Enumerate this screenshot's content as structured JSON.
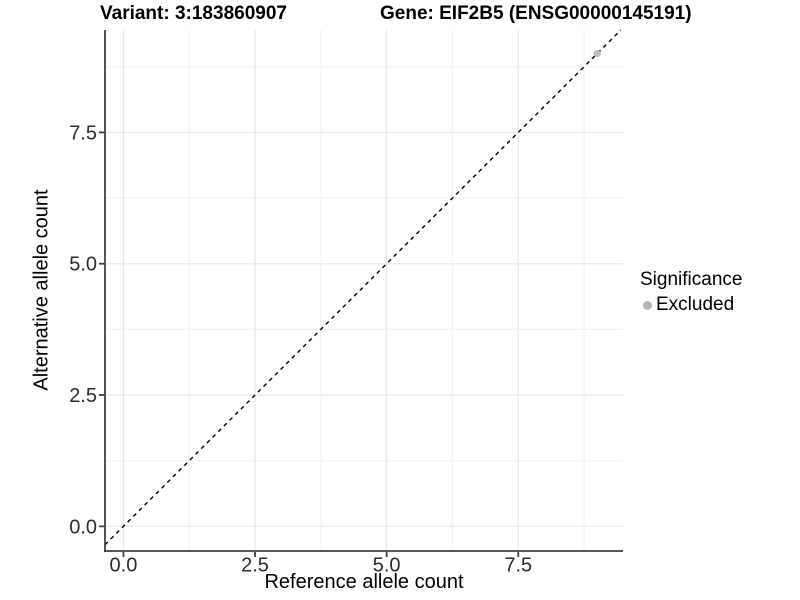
{
  "titles": {
    "left": "Variant: 3:183860907",
    "right": "Gene: EIF2B5 (ENSG00000145191)"
  },
  "colors": {
    "background": "#ffffff",
    "axis_line": "#404040",
    "tick_mark": "#404040",
    "tick_label": "#2b2b2b",
    "grid_major": "#e8e8e8",
    "grid_minor": "#f2f2f2",
    "reference_line": "#000000",
    "point": "#bcbcbc"
  },
  "chart_data": {
    "type": "scatter",
    "title_left": "Variant: 3:183860907",
    "title_right": "Gene: EIF2B5 (ENSG00000145191)",
    "xlabel": "Reference allele count",
    "ylabel": "Alternative allele count",
    "xlim": [
      -0.35,
      9.49
    ],
    "ylim": [
      -0.47,
      9.45
    ],
    "x_ticks": {
      "values": [
        0,
        2.5,
        5,
        7.5
      ],
      "labels": [
        "0.0",
        "2.5",
        "5.0",
        "7.5"
      ]
    },
    "y_ticks": {
      "values": [
        0,
        2.5,
        5,
        7.5
      ],
      "labels": [
        "0.0",
        "2.5",
        "5.0",
        "7.5"
      ]
    },
    "x_minor": [
      1.25,
      3.75,
      6.25,
      8.75
    ],
    "y_minor": [
      1.25,
      3.75,
      6.25,
      8.75
    ],
    "grid": true,
    "reference_line": {
      "type": "abline",
      "slope": 1,
      "intercept": 0,
      "style": "dashed",
      "color": "#000000"
    },
    "series": [
      {
        "name": "Excluded",
        "color": "#bcbcbc",
        "points": [
          [
            9,
            9
          ]
        ]
      }
    ],
    "legend": {
      "title": "Significance",
      "position": "right",
      "items": [
        {
          "label": "Excluded",
          "color": "#b5b5b5"
        }
      ]
    }
  }
}
